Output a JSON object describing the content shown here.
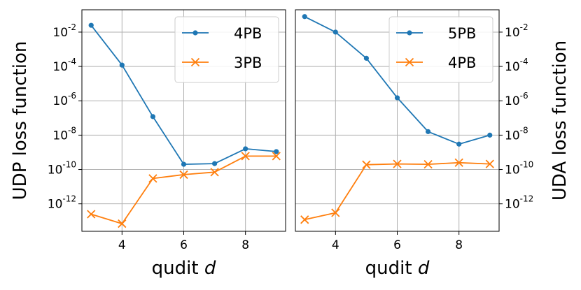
{
  "chart_data": [
    {
      "type": "line",
      "ylabel": "UDP loss function",
      "xlabel_prefix": "qudit ",
      "xlabel_var": "d",
      "xlim": [
        2.7,
        9.3
      ],
      "ylim_log10": [
        -13.6,
        -0.7
      ],
      "y_scale": "log",
      "grid": true,
      "legend_position": "top-right",
      "xticks": [
        4,
        6,
        8
      ],
      "yticks": [
        {
          "base": "10",
          "exp": "-2",
          "value": -2
        },
        {
          "base": "10",
          "exp": "-4",
          "value": -4
        },
        {
          "base": "10",
          "exp": "-6",
          "value": -6
        },
        {
          "base": "10",
          "exp": "-8",
          "value": -8
        },
        {
          "base": "10",
          "exp": "-10",
          "value": -10
        },
        {
          "base": "10",
          "exp": "-12",
          "value": -12
        }
      ],
      "yaxis_side": "left",
      "series": [
        {
          "name": "4PB",
          "color": "#1f77b4",
          "marker": "circle",
          "x": [
            3,
            4,
            5,
            6,
            7,
            8,
            9
          ],
          "y": [
            0.025,
            0.00012,
            1.2e-07,
            2e-10,
            2.2e-10,
            1.6e-09,
            1.1e-09
          ]
        },
        {
          "name": "3PB",
          "color": "#ff7f0e",
          "marker": "x",
          "x": [
            3,
            4,
            5,
            6,
            7,
            8,
            9
          ],
          "y": [
            2.5e-13,
            7e-14,
            3e-11,
            5e-11,
            7e-11,
            6e-10,
            6e-10
          ]
        }
      ]
    },
    {
      "type": "line",
      "ylabel": "UDA loss function",
      "xlabel_prefix": "qudit ",
      "xlabel_var": "d",
      "xlim": [
        2.7,
        9.3
      ],
      "ylim_log10": [
        -13.6,
        -0.7
      ],
      "y_scale": "log",
      "grid": true,
      "legend_position": "top-right",
      "xticks": [
        4,
        6,
        8
      ],
      "yticks": [
        {
          "base": "10",
          "exp": "-2",
          "value": -2
        },
        {
          "base": "10",
          "exp": "-4",
          "value": -4
        },
        {
          "base": "10",
          "exp": "-6",
          "value": -6
        },
        {
          "base": "10",
          "exp": "-8",
          "value": -8
        },
        {
          "base": "10",
          "exp": "-10",
          "value": -10
        },
        {
          "base": "10",
          "exp": "-12",
          "value": -12
        }
      ],
      "yaxis_side": "right",
      "series": [
        {
          "name": "5PB",
          "color": "#1f77b4",
          "marker": "circle",
          "x": [
            3,
            4,
            5,
            6,
            7,
            8,
            9
          ],
          "y": [
            0.08,
            0.01,
            0.0003,
            1.5e-06,
            1.6e-08,
            3e-09,
            1e-08
          ]
        },
        {
          "name": "4PB",
          "color": "#ff7f0e",
          "marker": "x",
          "x": [
            3,
            4,
            5,
            6,
            7,
            8,
            9
          ],
          "y": [
            1.2e-13,
            3e-13,
            1.9e-10,
            2.1e-10,
            2e-10,
            2.5e-10,
            2.1e-10
          ]
        }
      ]
    }
  ]
}
